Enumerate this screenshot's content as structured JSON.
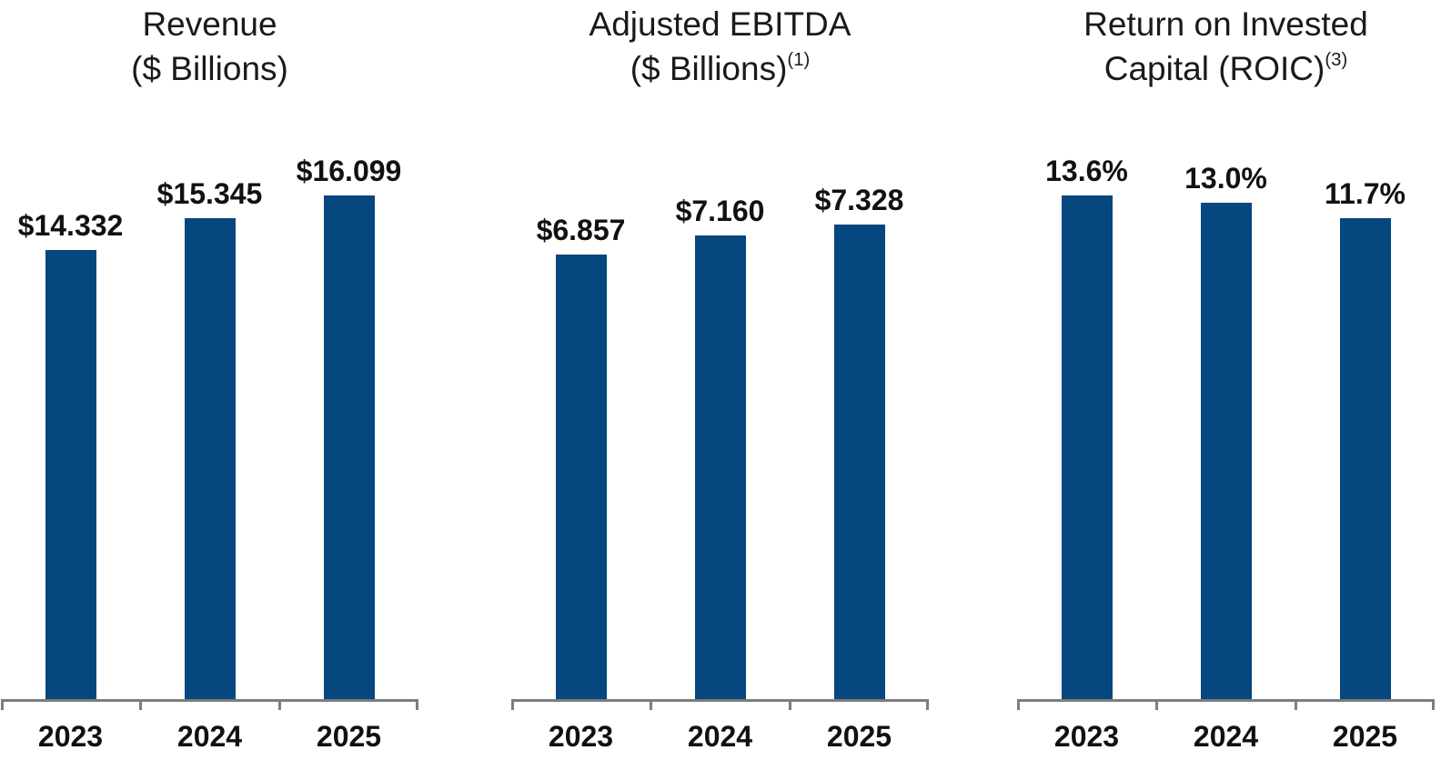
{
  "figure": {
    "background": "#ffffff",
    "bar_color": "#05477E",
    "axis_color": "#7d7d7d",
    "title_color": "#1a1a1a",
    "label_color": "#111111"
  },
  "chart_data": [
    {
      "type": "bar",
      "title": "Revenue ($ Billions)",
      "title_line1": "Revenue",
      "title_line2": "($ Billions)",
      "title_superscript": "",
      "categories": [
        "2023",
        "2024",
        "2025"
      ],
      "values": [
        14.332,
        15.345,
        16.099
      ],
      "labels": [
        "$14.332",
        "$15.345",
        "$16.099"
      ],
      "ylim": [
        0,
        18.0
      ],
      "grid": false,
      "legend": "none"
    },
    {
      "type": "bar",
      "title": "Adjusted EBITDA ($ Billions)(1)",
      "title_line1": "Adjusted EBITDA",
      "title_line2": "($ Billions)",
      "title_superscript": "(1)",
      "categories": [
        "2023",
        "2024",
        "2025"
      ],
      "values": [
        6.857,
        7.16,
        7.328
      ],
      "labels": [
        "$6.857",
        "$7.160",
        "$7.328"
      ],
      "ylim": [
        0,
        8.7
      ],
      "grid": false,
      "legend": "none"
    },
    {
      "type": "bar",
      "title": "Return on Invested Capital (ROIC)(3)",
      "title_line1": "Return on Invested",
      "title_line2": "Capital (ROIC)",
      "title_superscript": "(3)",
      "categories": [
        "2023",
        "2024",
        "2025"
      ],
      "values": [
        13.6,
        13.0,
        11.7
      ],
      "labels": [
        "13.6%",
        "13.0%",
        "11.7%"
      ],
      "ylim": [
        -28.5,
        18.6
      ],
      "grid": false,
      "legend": "none"
    }
  ]
}
